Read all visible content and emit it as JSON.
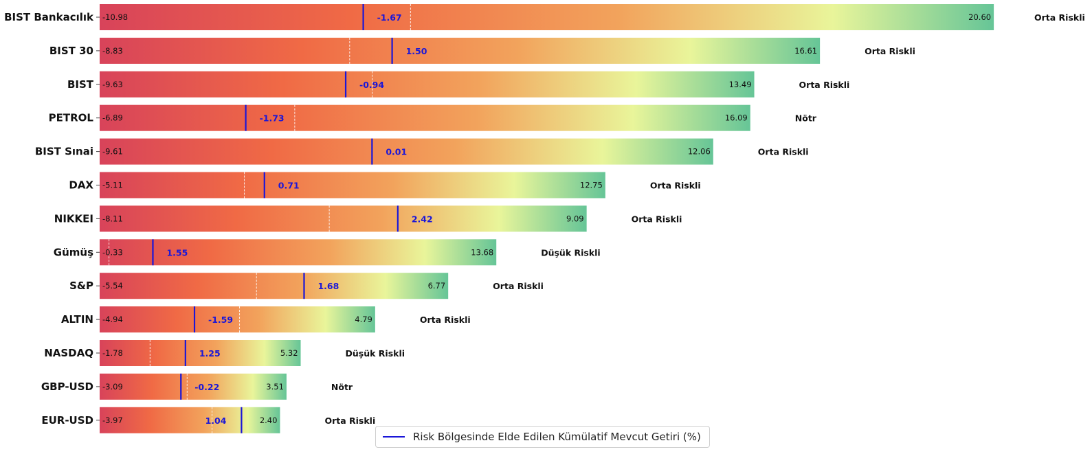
{
  "chart_data": {
    "type": "bar",
    "orientation": "horizontal",
    "title": "",
    "xlabel": "",
    "ylabel": "",
    "grid": false,
    "legend_position": "bottom-center",
    "legend": [
      {
        "label": "Risk Bölgesinde Elde Edilen Kümülatif Mevcut Getiri (%)",
        "color": "#1a16d8",
        "marker": "line"
      }
    ],
    "gradient_colors": [
      "#d8435a",
      "#f06a45",
      "#f2a35c",
      "#e9f59a",
      "#66c597"
    ],
    "current_marker_color": "#1a16d8",
    "categories": [
      "BIST Bankacılık",
      "BIST 30",
      "BIST",
      "PETROL",
      "BIST Sınai",
      "DAX",
      "NIKKEI",
      "Gümüş",
      "S&P",
      "ALTIN",
      "NASDAQ",
      "GBP-USD",
      "EUR-USD"
    ],
    "min_values": [
      "-10.98",
      "-8.83",
      "-9.63",
      "-6.89",
      "-9.61",
      "-5.11",
      "-8.11",
      "-0.33",
      "-5.54",
      "-4.94",
      "-1.78",
      "-3.09",
      "-3.97"
    ],
    "max_values": [
      "20.60",
      "16.61",
      "13.49",
      "16.09",
      "12.06",
      "12.75",
      "9.09",
      "13.68",
      "6.77",
      "4.79",
      "5.32",
      "3.51",
      "2.40"
    ],
    "current_values": [
      "-1.67",
      "1.50",
      "-0.94",
      "-1.73",
      "0.01",
      "0.71",
      "2.42",
      "1.55",
      "1.68",
      "-1.59",
      "1.25",
      "-0.22",
      "1.04"
    ],
    "risk_labels": [
      "Orta Riskli",
      "Orta Riskli",
      "Orta Riskli",
      "Nötr",
      "Orta Riskli",
      "Orta Riskli",
      "Orta Riskli",
      "Düşük Riskli",
      "Orta Riskli",
      "Orta Riskli",
      "Düşük Riskli",
      "Nötr",
      "Orta Riskli"
    ]
  }
}
